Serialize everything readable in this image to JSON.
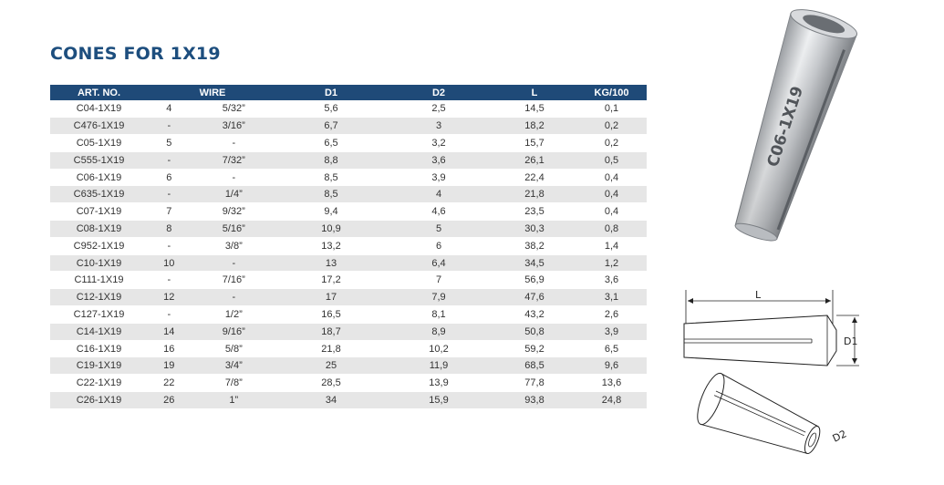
{
  "page": {
    "title": "CONES FOR 1X19"
  },
  "table": {
    "headers": {
      "art_no": "ART. NO.",
      "wire": "WIRE",
      "d1": "D1",
      "d2": "D2",
      "l": "L",
      "kg": "KG/100"
    },
    "rows": [
      {
        "art": "C04-1X19",
        "wire_mm": "4",
        "wire_in": "5/32”",
        "d1": "5,6",
        "d2": "2,5",
        "l": "14,5",
        "kg": "0,1"
      },
      {
        "art": "C476-1X19",
        "wire_mm": "-",
        "wire_in": "3/16”",
        "d1": "6,7",
        "d2": "3",
        "l": "18,2",
        "kg": "0,2"
      },
      {
        "art": "C05-1X19",
        "wire_mm": "5",
        "wire_in": "-",
        "d1": "6,5",
        "d2": "3,2",
        "l": "15,7",
        "kg": "0,2"
      },
      {
        "art": "C555-1X19",
        "wire_mm": "-",
        "wire_in": "7/32”",
        "d1": "8,8",
        "d2": "3,6",
        "l": "26,1",
        "kg": "0,5"
      },
      {
        "art": "C06-1X19",
        "wire_mm": "6",
        "wire_in": "-",
        "d1": "8,5",
        "d2": "3,9",
        "l": "22,4",
        "kg": "0,4"
      },
      {
        "art": "C635-1X19",
        "wire_mm": "-",
        "wire_in": "1/4”",
        "d1": "8,5",
        "d2": "4",
        "l": "21,8",
        "kg": "0,4"
      },
      {
        "art": "C07-1X19",
        "wire_mm": "7",
        "wire_in": "9/32”",
        "d1": "9,4",
        "d2": "4,6",
        "l": "23,5",
        "kg": "0,4"
      },
      {
        "art": "C08-1X19",
        "wire_mm": "8",
        "wire_in": "5/16”",
        "d1": "10,9",
        "d2": "5",
        "l": "30,3",
        "kg": "0,8"
      },
      {
        "art": "C952-1X19",
        "wire_mm": "-",
        "wire_in": "3/8”",
        "d1": "13,2",
        "d2": "6",
        "l": "38,2",
        "kg": "1,4"
      },
      {
        "art": "C10-1X19",
        "wire_mm": "10",
        "wire_in": "-",
        "d1": "13",
        "d2": "6,4",
        "l": "34,5",
        "kg": "1,2"
      },
      {
        "art": "C111-1X19",
        "wire_mm": "-",
        "wire_in": "7/16”",
        "d1": "17,2",
        "d2": "7",
        "l": "56,9",
        "kg": "3,6"
      },
      {
        "art": "C12-1X19",
        "wire_mm": "12",
        "wire_in": "-",
        "d1": "17",
        "d2": "7,9",
        "l": "47,6",
        "kg": "3,1"
      },
      {
        "art": "C127-1X19",
        "wire_mm": "-",
        "wire_in": "1/2”",
        "d1": "16,5",
        "d2": "8,1",
        "l": "43,2",
        "kg": "2,6"
      },
      {
        "art": "C14-1X19",
        "wire_mm": "14",
        "wire_in": "9/16”",
        "d1": "18,7",
        "d2": "8,9",
        "l": "50,8",
        "kg": "3,9"
      },
      {
        "art": "C16-1X19",
        "wire_mm": "16",
        "wire_in": "5/8”",
        "d1": "21,8",
        "d2": "10,2",
        "l": "59,2",
        "kg": "6,5"
      },
      {
        "art": "C19-1X19",
        "wire_mm": "19",
        "wire_in": "3/4”",
        "d1": "25",
        "d2": "11,9",
        "l": "68,5",
        "kg": "9,6"
      },
      {
        "art": "C22-1X19",
        "wire_mm": "22",
        "wire_in": "7/8”",
        "d1": "28,5",
        "d2": "13,9",
        "l": "77,8",
        "kg": "13,6"
      },
      {
        "art": "C26-1X19",
        "wire_mm": "26",
        "wire_in": "1”",
        "d1": "34",
        "d2": "15,9",
        "l": "93,8",
        "kg": "24,8"
      }
    ]
  },
  "photo": {
    "engraving": "C06-1X19"
  },
  "diagram": {
    "label_l": "L",
    "label_d1": "D1",
    "label_d2": "D2"
  },
  "colors": {
    "accent": "#1d4e7e",
    "header_bg": "#1f4a78",
    "row_alt": "#e6e6e6"
  }
}
